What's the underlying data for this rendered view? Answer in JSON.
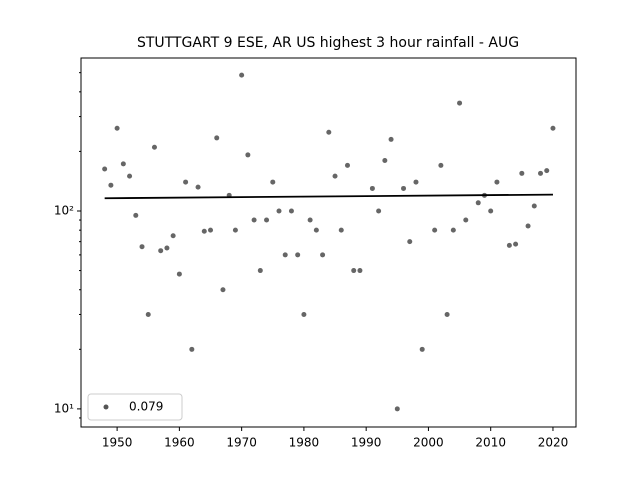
{
  "chart_data": {
    "type": "scatter",
    "title": "STUTTGART 9 ESE, AR US highest 3 hour rainfall - AUG",
    "log_y": true,
    "xlim": [
      1944.2,
      2023.7
    ],
    "ylim": [
      8.1,
      593
    ],
    "xticks": [
      1950,
      1960,
      1970,
      1980,
      1990,
      2000,
      2010,
      2020
    ],
    "yticks": [
      {
        "value": 10,
        "label": "10¹"
      },
      {
        "value": 100,
        "label": "10²"
      }
    ],
    "yminorticks": [
      9,
      20,
      30,
      40,
      50,
      60,
      70,
      80,
      90,
      200,
      300,
      400,
      500
    ],
    "legend": "lower left",
    "series": [
      {
        "name": "0.079",
        "color": "#555555",
        "x": [
          1948,
          1949,
          1950,
          1951,
          1952,
          1953,
          1954,
          1955,
          1956,
          1957,
          1958,
          1959,
          1960,
          1961,
          1962,
          1963,
          1964,
          1965,
          1966,
          1967,
          1968,
          1969,
          1970,
          1971,
          1972,
          1973,
          1974,
          1975,
          1976,
          1977,
          1978,
          1979,
          1980,
          1981,
          1982,
          1983,
          1984,
          1985,
          1986,
          1987,
          1988,
          1989,
          1991,
          1992,
          1993,
          1994,
          1995,
          1996,
          1997,
          1998,
          1999,
          2001,
          2002,
          2003,
          2004,
          2005,
          2006,
          2008,
          2009,
          2010,
          2011,
          2013,
          2014,
          2015,
          2016,
          2017,
          2018,
          2019,
          2020
        ],
        "values": [
          163,
          135,
          262,
          173,
          150,
          95,
          66,
          30,
          210,
          63,
          65,
          75,
          48,
          140,
          20,
          132,
          79,
          80,
          234,
          40,
          120,
          80,
          486,
          192,
          90,
          50,
          90,
          140,
          100,
          60,
          100,
          60,
          30,
          90,
          80,
          60,
          250,
          150,
          80,
          170,
          50,
          50,
          130,
          100,
          180,
          230,
          10,
          130,
          70,
          140,
          20,
          80,
          170,
          30,
          80,
          351,
          90,
          110,
          120,
          100,
          140,
          67,
          68,
          155,
          84,
          106,
          155,
          160,
          262
        ]
      }
    ],
    "trend": {
      "color": "#000000",
      "x": [
        1948,
        2020
      ],
      "values": [
        116,
        121
      ]
    }
  }
}
